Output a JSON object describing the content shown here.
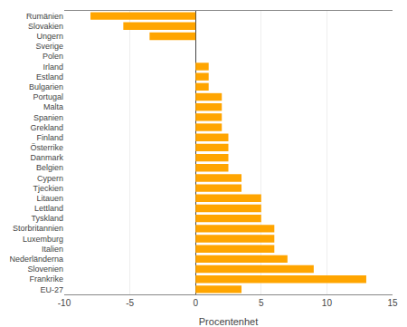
{
  "chart_data": {
    "type": "bar",
    "orientation": "horizontal",
    "categories": [
      "Rumänien",
      "Slovakien",
      "Ungern",
      "Sverige",
      "Polen",
      "Irland",
      "Estland",
      "Bulgarien",
      "Portugal",
      "Malta",
      "Spanien",
      "Grekland",
      "Finland",
      "Österrike",
      "Danmark",
      "Belgien",
      "Cypern",
      "Tjeckien",
      "Litauen",
      "Lettland",
      "Tyskland",
      "Storbritannien",
      "Luxemburg",
      "Italien",
      "Nederländerna",
      "Slovenien",
      "Frankrike",
      "EU-27"
    ],
    "values": [
      -8.0,
      -5.5,
      -3.5,
      0.0,
      0.0,
      1.0,
      1.0,
      1.0,
      2.0,
      2.0,
      2.0,
      2.0,
      2.5,
      2.5,
      2.5,
      2.5,
      3.5,
      3.5,
      5.0,
      5.0,
      5.0,
      6.0,
      6.0,
      6.0,
      7.0,
      9.0,
      13.0,
      3.5
    ],
    "color": "#FFA500",
    "xlabel": "Procentenhet",
    "xlim": [
      -10,
      15
    ],
    "xticks": [
      -10,
      -5,
      0,
      5,
      10,
      15
    ],
    "grid": true
  }
}
